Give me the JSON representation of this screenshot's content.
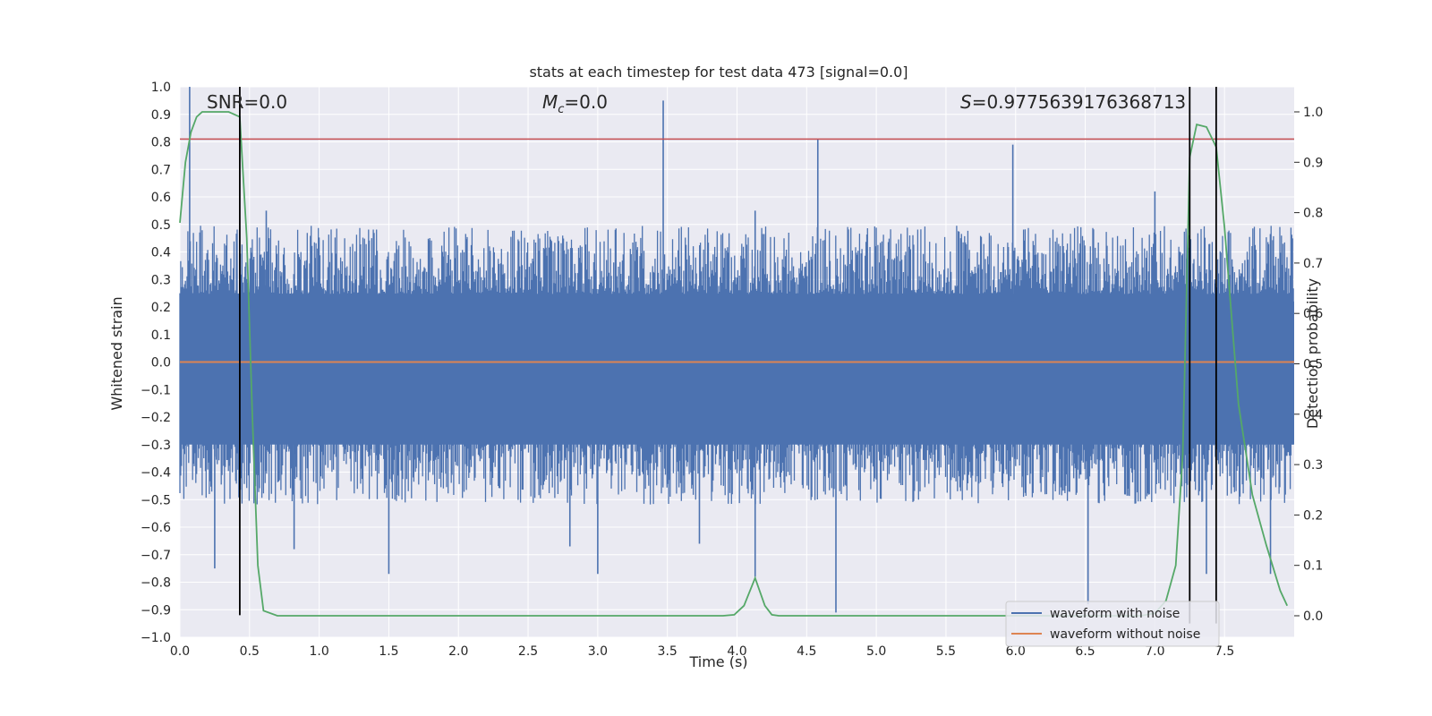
{
  "chart_data": {
    "type": "line",
    "title": "stats at each timestep for test data 473 [signal=0.0]",
    "xlabel": "Time (s)",
    "ylabel": "Whitened strain",
    "y2label": "Detection probability",
    "xlim": [
      0.0,
      8.0
    ],
    "ylim": [
      -1.0,
      1.0
    ],
    "y2lim": [
      0.0,
      1.0
    ],
    "x_ticks": [
      "0.0",
      "0.5",
      "1.0",
      "1.5",
      "2.0",
      "2.5",
      "3.0",
      "3.5",
      "4.0",
      "4.5",
      "5.0",
      "5.5",
      "6.0",
      "6.5",
      "7.0",
      "7.5"
    ],
    "y_ticks": [
      "1.0",
      "0.9",
      "0.8",
      "0.7",
      "0.6",
      "0.5",
      "0.4",
      "0.3",
      "0.2",
      "0.1",
      "0.0",
      "-0.1",
      "-0.2",
      "-0.3",
      "-0.4",
      "-0.5",
      "-0.6",
      "-0.7",
      "-0.8",
      "-0.9",
      "-1.0"
    ],
    "y2_ticks": [
      "1.0",
      "0.9",
      "0.8",
      "0.7",
      "0.6",
      "0.5",
      "0.4",
      "0.3",
      "0.2",
      "0.1",
      "0.0"
    ],
    "grid": true,
    "legend_position": "lower-right",
    "annotations": {
      "snr": "SNR=0.0",
      "mc_symbol": "M",
      "mc_sub": "c",
      "mc_value": "=0.0",
      "s_symbol": "S",
      "s_value": "=0.9775639176368713"
    },
    "series": [
      {
        "name": "waveform with noise",
        "color": "#4c72b0",
        "envelope_typical": 0.45,
        "peaks": [
          {
            "x": 0.07,
            "y": 1.0
          },
          {
            "x": 0.25,
            "y": -0.75
          },
          {
            "x": 0.62,
            "y": 0.55
          },
          {
            "x": 0.82,
            "y": -0.68
          },
          {
            "x": 1.5,
            "y": -0.77
          },
          {
            "x": 2.8,
            "y": -0.67
          },
          {
            "x": 3.0,
            "y": -0.77
          },
          {
            "x": 3.47,
            "y": 0.95
          },
          {
            "x": 3.73,
            "y": -0.66
          },
          {
            "x": 4.13,
            "y": 0.55
          },
          {
            "x": 4.13,
            "y": -0.78
          },
          {
            "x": 4.58,
            "y": 0.81
          },
          {
            "x": 4.71,
            "y": -0.91
          },
          {
            "x": 5.98,
            "y": 0.79
          },
          {
            "x": 6.52,
            "y": -0.88
          },
          {
            "x": 7.0,
            "y": 0.62
          },
          {
            "x": 7.37,
            "y": -0.77
          },
          {
            "x": 7.83,
            "y": -0.77
          }
        ]
      },
      {
        "name": "waveform without noise",
        "color": "#dd8452",
        "x": [
          0.0,
          8.0
        ],
        "y": [
          0.0,
          0.0
        ]
      },
      {
        "name": "detection probability",
        "axis": "right",
        "color": "#55a868",
        "x": [
          0.0,
          0.04,
          0.08,
          0.12,
          0.16,
          0.25,
          0.35,
          0.43,
          0.48,
          0.52,
          0.56,
          0.6,
          0.7,
          1.0,
          2.0,
          3.0,
          3.9,
          3.98,
          4.05,
          4.13,
          4.2,
          4.25,
          4.3,
          5.0,
          6.0,
          6.9,
          7.0,
          7.08,
          7.15,
          7.2,
          7.25,
          7.3,
          7.37,
          7.44,
          7.5,
          7.6,
          7.7,
          7.8,
          7.9,
          7.95
        ],
        "y": [
          0.78,
          0.9,
          0.96,
          0.99,
          1.0,
          1.0,
          1.0,
          0.99,
          0.75,
          0.4,
          0.1,
          0.01,
          0.0,
          0.0,
          0.0,
          0.0,
          0.0,
          0.002,
          0.02,
          0.075,
          0.02,
          0.002,
          0.0,
          0.0,
          0.0,
          0.0,
          0.005,
          0.03,
          0.1,
          0.32,
          0.91,
          0.975,
          0.97,
          0.93,
          0.77,
          0.42,
          0.24,
          0.14,
          0.05,
          0.02
        ]
      }
    ],
    "hlines": [
      {
        "y": 0.81,
        "color": "#c44e52"
      }
    ],
    "vlines": [
      {
        "x": 0.43,
        "y_from": -0.92,
        "y_to": 1.0
      },
      {
        "x": 7.25,
        "y_from": -0.95,
        "y_to": 1.0
      },
      {
        "x": 7.44,
        "y_from": -0.95,
        "y_to": 1.0
      }
    ]
  }
}
